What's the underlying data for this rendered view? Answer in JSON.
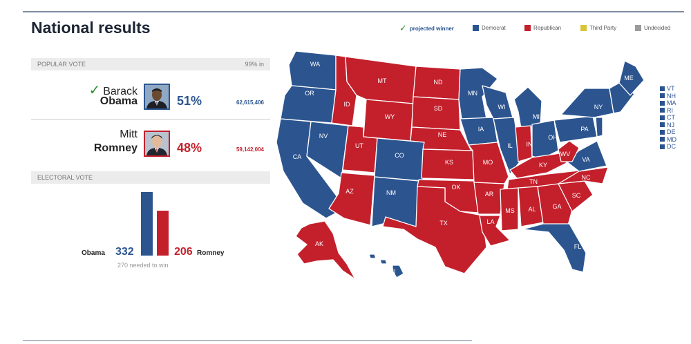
{
  "title": "National results",
  "legend": {
    "projected_winner": "projected winner",
    "items": [
      {
        "label": "Democrat",
        "color": "#2c5590"
      },
      {
        "label": "Republican",
        "color": "#c3202c"
      },
      {
        "label": "Third Party",
        "color": "#d8c537"
      },
      {
        "label": "Undecided",
        "color": "#9b9b9b"
      }
    ]
  },
  "popular_vote": {
    "label": "POPULAR VOTE",
    "reporting": "99% in",
    "candidates": [
      {
        "first": "Barack",
        "last": "Obama",
        "percent": "51%",
        "votes": "62,615,406",
        "winner": true,
        "party": "Democrat"
      },
      {
        "first": "Mitt",
        "last": "Romney",
        "percent": "48%",
        "votes": "59,142,004",
        "winner": false,
        "party": "Republican"
      }
    ]
  },
  "electoral_vote": {
    "label": "ELECTORAL VOTE",
    "obama_label": "Obama",
    "obama_votes": "332",
    "romney_label": "Romney",
    "romney_votes": "206",
    "needed": "270 needed to win"
  },
  "map": {
    "colors": {
      "democrat": "#2c5590",
      "republican": "#c3202c"
    },
    "state_labels": [
      "WA",
      "OR",
      "CA",
      "NV",
      "ID",
      "MT",
      "WY",
      "UT",
      "AZ",
      "CO",
      "NM",
      "ND",
      "SD",
      "NE",
      "KS",
      "OK",
      "TX",
      "MN",
      "IA",
      "MO",
      "AR",
      "LA",
      "WI",
      "IL",
      "MI",
      "IN",
      "OH",
      "KY",
      "TN",
      "MS",
      "AL",
      "GA",
      "FL",
      "SC",
      "NC",
      "VA",
      "WV",
      "PA",
      "NY",
      "ME",
      "AK",
      "HI"
    ],
    "small_states": [
      "VT",
      "NH",
      "MA",
      "RI",
      "CT",
      "NJ",
      "DE",
      "MD",
      "DC"
    ]
  }
}
